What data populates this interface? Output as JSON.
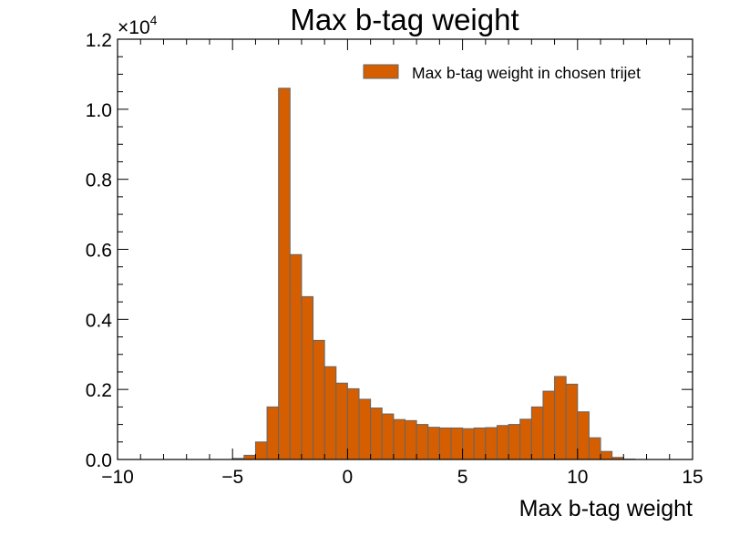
{
  "chart_data": {
    "type": "bar",
    "title": "Max b-tag weight",
    "xlabel": "Max b-tag weight",
    "ylabel": "",
    "xlim": [
      -10,
      15
    ],
    "ylim": [
      0,
      12000
    ],
    "x_ticks": [
      -10,
      -5,
      0,
      5,
      10,
      15
    ],
    "y_ticks": [
      0,
      2000,
      4000,
      6000,
      8000,
      10000,
      12000
    ],
    "y_tick_labels": [
      "0.0",
      "0.2",
      "0.4",
      "0.6",
      "0.8",
      "1.0",
      "1.2"
    ],
    "x_tick_labels": [
      "−10",
      "−5",
      "0",
      "5",
      "10",
      "15"
    ],
    "y_multiplier": {
      "base": "×10",
      "exponent": "4"
    },
    "bin_edges_start": -10,
    "bin_width": 0.5,
    "series": [
      {
        "name": "Max b-tag weight in chosen trijet",
        "color": "#d55e00",
        "edgecolor": "#666666",
        "values": [
          0,
          0,
          0,
          0,
          0,
          0,
          0,
          0,
          0,
          0,
          30,
          120,
          500,
          1500,
          10600,
          5850,
          4650,
          3400,
          2650,
          2180,
          2020,
          1720,
          1470,
          1300,
          1140,
          1110,
          1000,
          920,
          900,
          900,
          880,
          900,
          910,
          970,
          1000,
          1150,
          1500,
          1950,
          2370,
          2150,
          1360,
          620,
          230,
          60,
          10,
          0,
          0,
          0,
          0,
          0
        ]
      }
    ],
    "legend_position": "upper right",
    "grid": false
  }
}
